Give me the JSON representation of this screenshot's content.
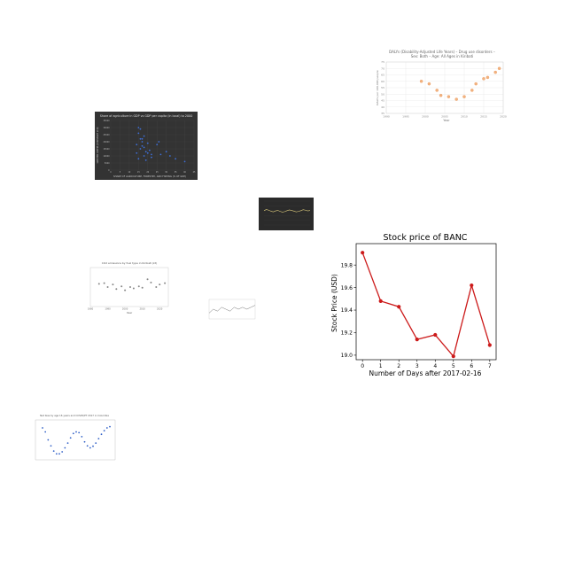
{
  "chart_data": [
    {
      "id": "dalys",
      "type": "scatter",
      "title": "DALYs (Disability-Adjusted Life Years) – Drug use disorders – Sex: Both – Age: All Ages in Kiribati",
      "title_lines": [
        "DALYs (Disability-Adjusted Life Years) – Drug use disorders –",
        "Sex: Both – Age: All Ages in Kiribati"
      ],
      "xlabel": "Year",
      "ylabel": "DALYs per 100,000 people",
      "x": [
        1999,
        2001,
        2003,
        2004,
        2006,
        2008,
        2010,
        2012,
        2013,
        2015,
        2016,
        2018,
        2019
      ],
      "y": [
        60,
        58,
        53,
        49,
        48,
        46,
        48,
        53,
        58,
        62,
        63,
        67,
        70
      ],
      "xlim": [
        1990,
        2020
      ],
      "ylim": [
        35,
        75
      ],
      "xticks": [
        "1990",
        "1995",
        "2000",
        "2005",
        "2010",
        "2015",
        "2020"
      ],
      "yticks": [
        "35",
        "40",
        "45",
        "50",
        "55",
        "60",
        "65",
        "70",
        "75"
      ],
      "colors": {
        "marker": "#f2b27f",
        "marker_edge": "#e8975c"
      },
      "grid": true
    },
    {
      "id": "agri",
      "type": "scatter",
      "title": "Share of agriculture in GDP vs GDP per capita (in local) to 2000",
      "xlabel": "SHARE OF AGRICULTURE, FORESTRY, AND FISHING (% OF GDP)",
      "ylabel": "GDP PER CAPITA (CONSTANT LCU)",
      "x": [
        14,
        15,
        15,
        16,
        16,
        17,
        17,
        18,
        18,
        19,
        20,
        20,
        21,
        22,
        25,
        26,
        27,
        30,
        32,
        35,
        40,
        14,
        15,
        16,
        18,
        19,
        17,
        22
      ],
      "y": [
        18000,
        26000,
        30000,
        22000,
        15000,
        20000,
        17000,
        24000,
        10000,
        13000,
        12000,
        19000,
        14000,
        9000,
        18000,
        20000,
        11000,
        13000,
        10000,
        8000,
        6000,
        12000,
        8000,
        29000,
        16000,
        7000,
        22000,
        11000
      ],
      "xlim": [
        0,
        45
      ],
      "ylim": [
        0,
        35000
      ],
      "xticks": [
        "0",
        "5",
        "10",
        "15",
        "20",
        "25",
        "30",
        "35",
        "40",
        "45"
      ],
      "yticks": [
        "0",
        "5000",
        "10000",
        "15000",
        "20000",
        "25000",
        "30000",
        "35000"
      ],
      "colors": {
        "background": "#333333",
        "marker": "#3e6fd8"
      },
      "grid": true
    },
    {
      "id": "darkline",
      "type": "line",
      "title": "",
      "x": [
        0,
        1,
        2,
        3,
        4,
        5,
        6,
        7,
        8,
        9,
        10,
        11,
        12,
        13,
        14,
        15,
        16,
        17,
        18,
        19,
        20
      ],
      "y": [
        6,
        6.5,
        6.2,
        5.8,
        5.5,
        5.9,
        6.1,
        5.7,
        5.4,
        5.6,
        6,
        6.3,
        6.1,
        5.8,
        5.5,
        5.7,
        6,
        6.4,
        6.2,
        5.9,
        6.1
      ],
      "ylim": [
        0,
        10
      ],
      "colors": {
        "background": "#2b2b2b",
        "line": "#d8c77a"
      },
      "grid": true
    },
    {
      "id": "banc",
      "type": "line",
      "title": "Stock price of BANC",
      "xlabel": "Number of Days after 2017-02-16",
      "ylabel": "Stock Price (USD)",
      "x": [
        0,
        1,
        2,
        3,
        4,
        5,
        6,
        7
      ],
      "y": [
        19.91,
        19.48,
        19.43,
        19.14,
        19.18,
        18.99,
        19.62,
        19.09
      ],
      "xlim": [
        -0.35,
        7.35
      ],
      "ylim": [
        18.96,
        19.99
      ],
      "xticks": [
        "0",
        "1",
        "2",
        "3",
        "4",
        "5",
        "6",
        "7"
      ],
      "yticks": [
        "19.0",
        "19.2",
        "19.4",
        "19.6",
        "19.8"
      ],
      "colors": {
        "line": "#cc1a1a",
        "marker": "#cc1a1a"
      },
      "grid": false
    },
    {
      "id": "grayscatter",
      "type": "scatter",
      "title": "CO2 emissions by fuel type in Kiribati (kt)",
      "xlabel": "Year",
      "ylabel": "",
      "x": [
        1985,
        1988,
        1990,
        1993,
        1995,
        1998,
        2000,
        2003,
        2005,
        2008,
        2010,
        2013,
        2015,
        2018,
        2020,
        2023
      ],
      "y": [
        55,
        56,
        50,
        54,
        47,
        51,
        45,
        50,
        48,
        51,
        49,
        62,
        57,
        50,
        54,
        56
      ],
      "xlim": [
        1980,
        2025
      ],
      "ylim": [
        20,
        80
      ],
      "xticks": [
        "1980",
        "1990",
        "2000",
        "2010",
        "2020"
      ],
      "colors": {
        "marker": "#888888"
      },
      "grid": false
    },
    {
      "id": "tinyline",
      "type": "line",
      "title": "",
      "x": [
        0,
        1,
        2,
        3,
        4,
        5,
        6,
        7,
        8,
        9,
        10,
        11
      ],
      "y": [
        3,
        5,
        4,
        6,
        5,
        4,
        6,
        5,
        6,
        5,
        6,
        7
      ],
      "ylim": [
        0,
        10
      ],
      "colors": {
        "line": "#777777"
      },
      "grid": false
    },
    {
      "id": "bluedots",
      "type": "scatter",
      "title": "Net bias by age 16 years and COVID/PT 2017 in Columbia",
      "xlabel": "",
      "ylabel": "",
      "x": [
        0,
        1,
        2,
        3,
        4,
        5,
        6,
        7,
        8,
        9,
        10,
        11,
        12,
        13,
        14,
        15,
        16,
        17,
        18,
        19,
        20,
        21,
        22,
        23,
        24
      ],
      "y": [
        8,
        7,
        5,
        3.5,
        2.2,
        1.5,
        1.5,
        2,
        3,
        4.2,
        5.5,
        6.6,
        7,
        6.8,
        5.8,
        4.5,
        3.5,
        3,
        3.4,
        4.2,
        5.3,
        6.4,
        7.3,
        8,
        8.3
      ],
      "ylim": [
        0,
        10
      ],
      "colors": {
        "marker": "#2f5fc7"
      },
      "grid": false
    }
  ]
}
